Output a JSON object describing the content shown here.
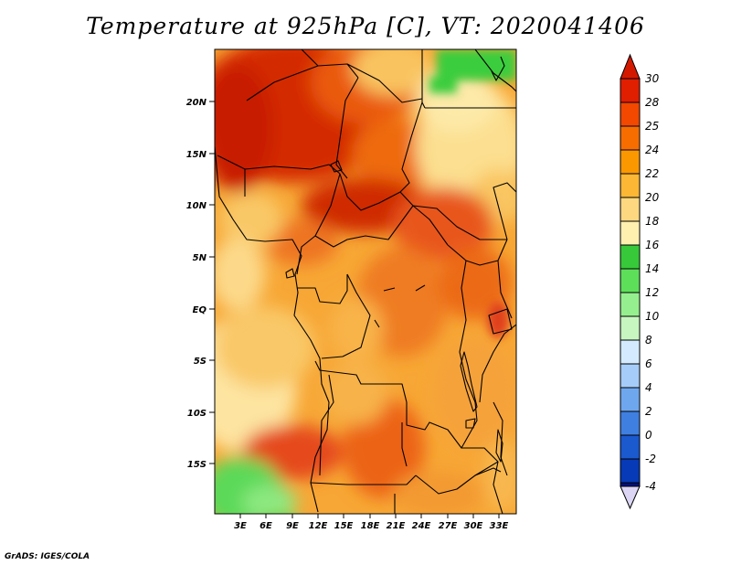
{
  "title": "Temperature at 925hPa [C], VT: 2020041406",
  "credit": "GrADS: IGES/COLA",
  "lat_ticks": [
    "20N",
    "15N",
    "10N",
    "5N",
    "EQ",
    "5S",
    "10S",
    "15S"
  ],
  "lon_ticks": [
    "3E",
    "6E",
    "9E",
    "12E",
    "15E",
    "18E",
    "21E",
    "24E",
    "27E",
    "30E",
    "33E"
  ],
  "colorbar": {
    "labels": [
      "30",
      "28",
      "25",
      "24",
      "22",
      "20",
      "18",
      "16",
      "14",
      "12",
      "10",
      "8",
      "6",
      "4",
      "2",
      "0",
      "-2",
      "-4"
    ],
    "colors": [
      "#e01e00",
      "#f24800",
      "#f76d00",
      "#fb9800",
      "#fcb734",
      "#fdd880",
      "#fff0b0",
      "#37c93a",
      "#5edf5a",
      "#96ef8f",
      "#c7f6c1",
      "#d4ebff",
      "#a6cdf9",
      "#6fa7ef",
      "#3f7fe0",
      "#1b59cf",
      "#073ab6",
      "#04107a"
    ],
    "top_color": "#d31a00",
    "bottom_color": "#dcd6f4"
  },
  "palette": {
    "t30": "#c81f00",
    "t28": "#e03a0a",
    "t26": "#ee6a10",
    "t24": "#f58f24",
    "t22": "#f8b042",
    "t20": "#fad27a",
    "t18": "#fdeeb0",
    "g16": "#3bcd3e",
    "g14": "#66df5e",
    "g12": "#a2ee92"
  }
}
